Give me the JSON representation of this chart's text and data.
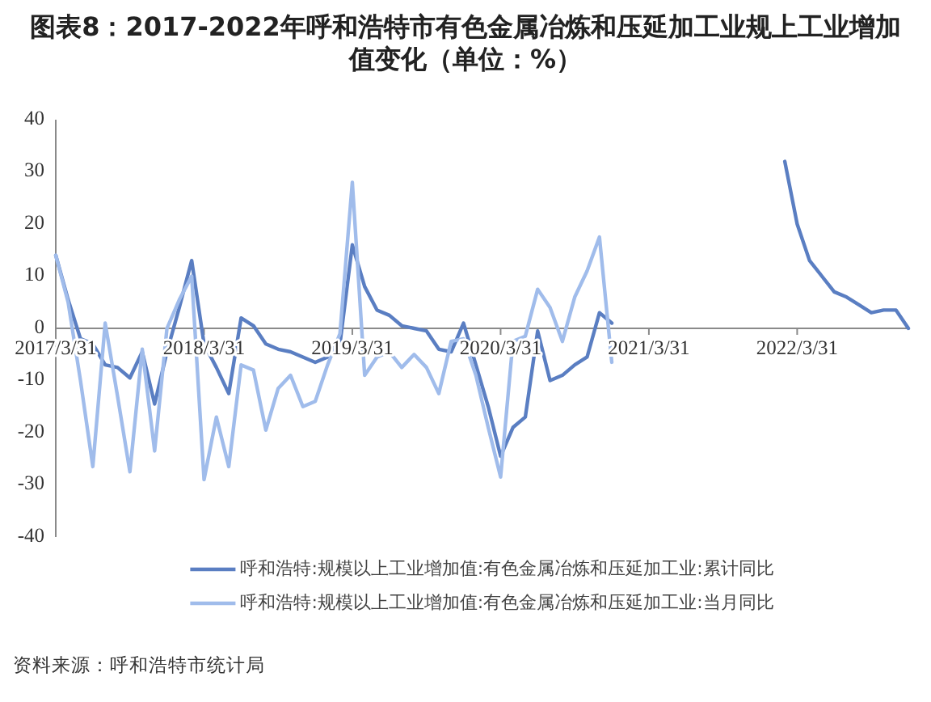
{
  "chart_data": {
    "type": "line",
    "title": "图表8：2017-2022年呼和浩特市有色金属冶炼和压延加工业规上工业增加值变化（单位：%）",
    "series": [
      {
        "name": "呼和浩特:规模以上工业增加值:有色金属冶炼和压延加工业:累计同比",
        "color": "#5a7ec2",
        "x": [
          "2017-03",
          "2017-04",
          "2017-05",
          "2017-06",
          "2017-07",
          "2017-08",
          "2017-09",
          "2017-10",
          "2017-11",
          "2017-12",
          "2018-01",
          "2018-02",
          "2018-03",
          "2018-04",
          "2018-05",
          "2018-06",
          "2018-07",
          "2018-08",
          "2018-09",
          "2018-10",
          "2018-11",
          "2018-12",
          "2019-01",
          "2019-02",
          "2019-03",
          "2019-04",
          "2019-05",
          "2019-06",
          "2019-07",
          "2019-08",
          "2019-09",
          "2019-10",
          "2019-11",
          "2019-12",
          "2020-01",
          "2020-02",
          "2020-03",
          "2020-04",
          "2020-05",
          "2020-06",
          "2020-07",
          "2020-08",
          "2020-09",
          "2020-10",
          "2020-11",
          "2020-12"
        ],
        "values": [
          14,
          5.5,
          -2,
          -3,
          -7,
          -7.5,
          -9.5,
          -4.5,
          -14.5,
          -4.5,
          4,
          13,
          -3,
          -7.5,
          -12.5,
          2,
          0.5,
          -3,
          -4,
          -4.5,
          -5.5,
          -6.5,
          -5.5,
          -3,
          16,
          8,
          3.5,
          2.5,
          0.5,
          0,
          -0.5,
          -4,
          -4.5,
          1,
          -7,
          -15,
          -24.5,
          -19,
          -17,
          -0.5,
          -10,
          -9,
          -7,
          -5.5,
          3,
          1
        ]
      },
      {
        "name": "呼和浩特:规模以上工业增加值:有色金属冶炼和压延加工业:当月同比",
        "color": "#a0bceb",
        "x": [
          "2017-03",
          "2017-04",
          "2017-05",
          "2017-06",
          "2017-07",
          "2017-08",
          "2017-09",
          "2017-10",
          "2017-11",
          "2017-12",
          "2018-01",
          "2018-02",
          "2018-03",
          "2018-04",
          "2018-05",
          "2018-06",
          "2018-07",
          "2018-08",
          "2018-09",
          "2018-10",
          "2018-11",
          "2018-12",
          "2019-01",
          "2019-02",
          "2019-03",
          "2019-04",
          "2019-05",
          "2019-06",
          "2019-07",
          "2019-08",
          "2019-09",
          "2019-10",
          "2019-11",
          "2019-12",
          "2020-01",
          "2020-02",
          "2020-03",
          "2020-04",
          "2020-05",
          "2020-06",
          "2020-07",
          "2020-08",
          "2020-09",
          "2020-10",
          "2020-11",
          "2020-12"
        ],
        "values": [
          14,
          5,
          -10,
          -26.5,
          1,
          -13,
          -27.5,
          -4,
          -23.5,
          0,
          5.5,
          10,
          -29,
          -17,
          -26.5,
          -7,
          -8,
          -19.5,
          -11.5,
          -9,
          -15,
          -14,
          -7,
          -1,
          28,
          -9,
          -5.5,
          -4.5,
          -7.5,
          -5,
          -7.5,
          -12.5,
          -2.5,
          -2,
          -9,
          -19,
          -28.5,
          -2.5,
          -1.5,
          7.5,
          4,
          -2.5,
          6,
          11,
          17.5,
          -6.5
        ]
      },
      {
        "color": "#5a7ec2",
        "x": [
          "2022-02",
          "2022-03",
          "2022-04",
          "2022-05",
          "2022-06",
          "2022-07",
          "2022-08",
          "2022-09",
          "2022-10",
          "2022-11",
          "2022-12"
        ],
        "values": [
          32,
          20,
          13,
          10,
          7,
          6,
          4.5,
          3,
          3.5,
          3.5,
          0
        ]
      }
    ],
    "xlim": [
      "2017-03",
      "2022-12"
    ],
    "xticks": [
      {
        "value": "2017-03",
        "label": "2017/3/31"
      },
      {
        "value": "2018-03",
        "label": "2018/3/31"
      },
      {
        "value": "2019-03",
        "label": "2019/3/31"
      },
      {
        "value": "2020-03",
        "label": "2020/3/31"
      },
      {
        "value": "2021-03",
        "label": "2021/3/31"
      },
      {
        "value": "2022-03",
        "label": "2022/3/31"
      }
    ],
    "ylim": [
      -40,
      40
    ],
    "yticks": [
      -40,
      -30,
      -20,
      -10,
      0,
      10,
      20,
      30,
      40
    ],
    "legend": "bottom",
    "annotations": [
      "资料来源：呼和浩特市统计局"
    ]
  }
}
